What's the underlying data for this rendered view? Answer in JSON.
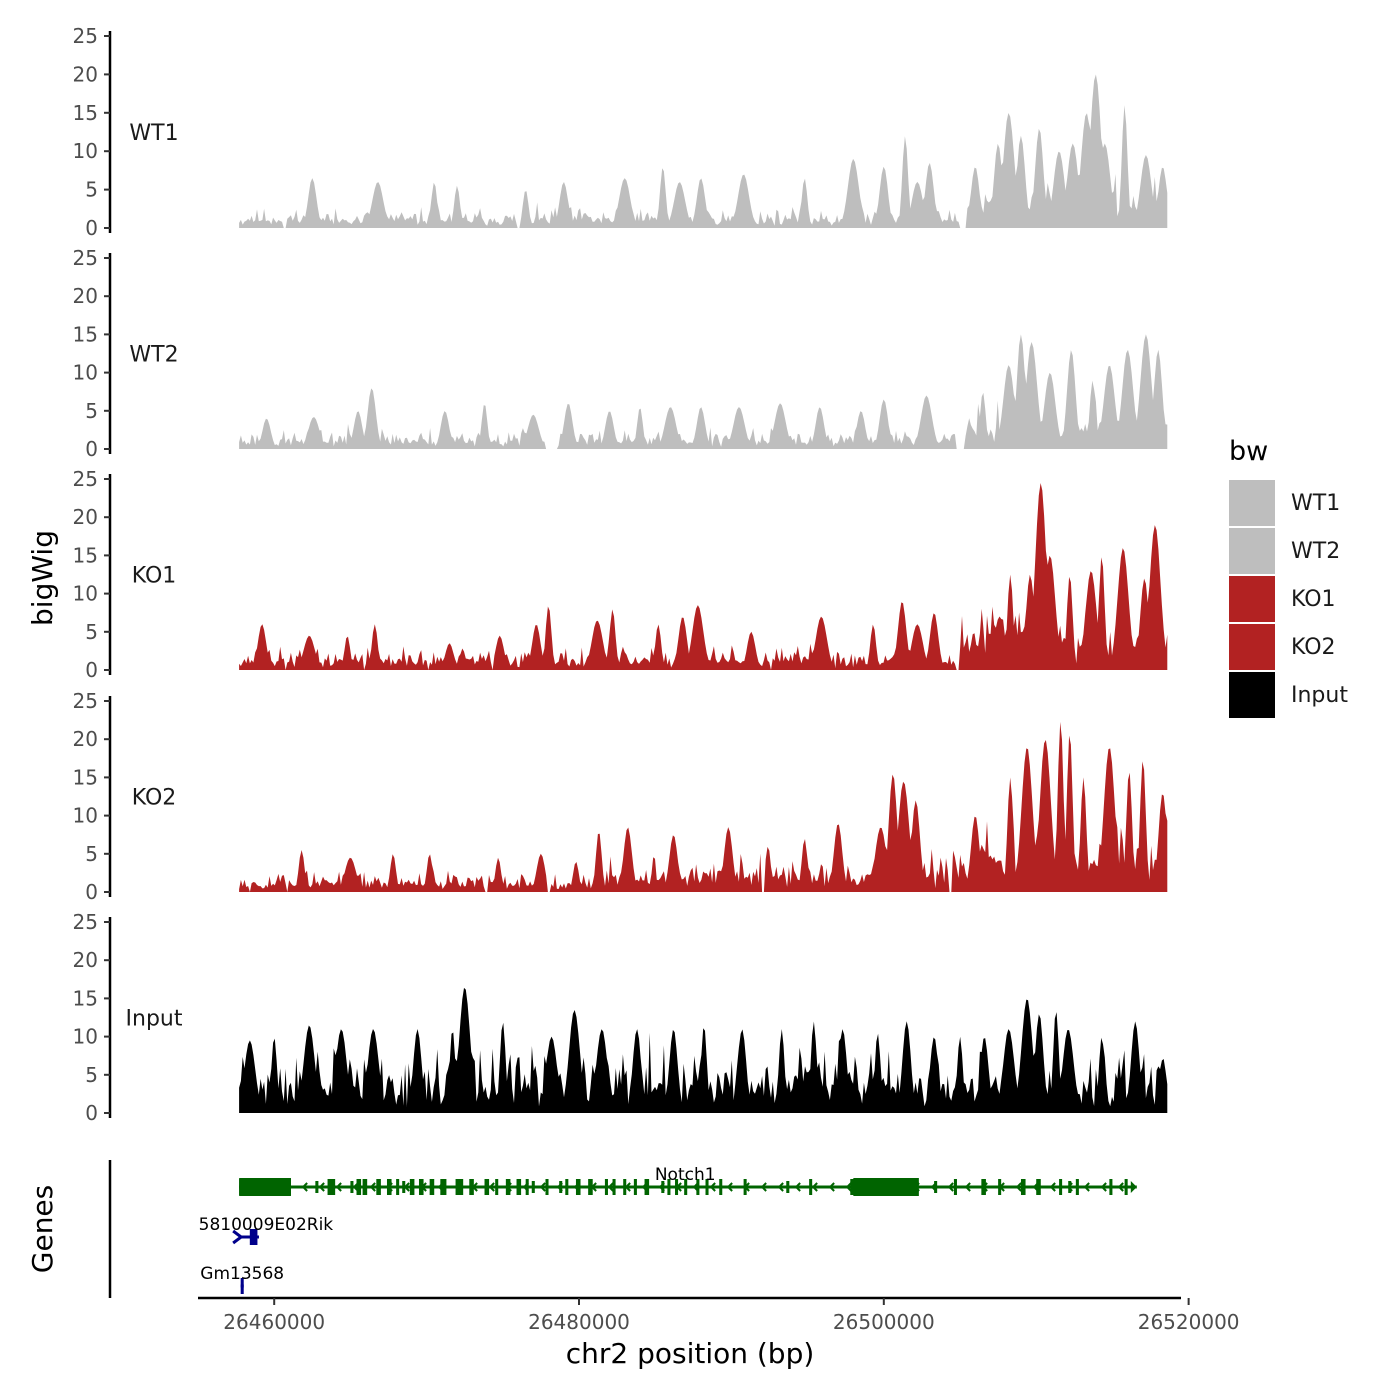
{
  "chart_data": {
    "type": "area",
    "title": "",
    "xlabel": "chr2 position (bp)",
    "ylabel": "bigWig",
    "genes_axis_label": "Genes",
    "xlim": [
      26455000,
      26519500
    ],
    "data_range": [
      26457700,
      26518600
    ],
    "x_ticks": [
      26460000,
      26480000,
      26500000,
      26520000
    ],
    "x_tick_labels": [
      "26460000",
      "26480000",
      "26500000",
      "26520000"
    ],
    "ylim": [
      0,
      25
    ],
    "y_ticks": [
      0,
      5,
      10,
      15,
      20,
      25
    ],
    "y_tick_labels": [
      "0",
      "5",
      "10",
      "15",
      "20",
      "25"
    ],
    "legend": {
      "title": "bw",
      "position": "right",
      "entries": [
        {
          "label": "WT1",
          "color": "#BEBEBE"
        },
        {
          "label": "WT2",
          "color": "#BEBEBE"
        },
        {
          "label": "KO1",
          "color": "#B22222"
        },
        {
          "label": "KO2",
          "color": "#B22222"
        },
        {
          "label": "Input",
          "color": "#000000"
        }
      ]
    },
    "series": [
      {
        "name": "WT1",
        "color": "#BEBEBE",
        "seed": 11,
        "peaks": [
          [
            26462500,
            6.5
          ],
          [
            26466800,
            6
          ],
          [
            26470500,
            6
          ],
          [
            26472000,
            5.5
          ],
          [
            26476500,
            5
          ],
          [
            26479000,
            6
          ],
          [
            26483000,
            6.5
          ],
          [
            26485500,
            8
          ],
          [
            26486600,
            6
          ],
          [
            26488000,
            6.5
          ],
          [
            26490800,
            7
          ],
          [
            26494800,
            6.5
          ],
          [
            26498000,
            9
          ],
          [
            26500000,
            8
          ],
          [
            26501400,
            12
          ],
          [
            26502200,
            6
          ],
          [
            26503000,
            8.5
          ],
          [
            26506000,
            8
          ],
          [
            26507500,
            11
          ],
          [
            26508200,
            15
          ],
          [
            26509000,
            12
          ],
          [
            26510200,
            13
          ],
          [
            26511500,
            10
          ],
          [
            26512400,
            11
          ],
          [
            26513300,
            15
          ],
          [
            26513900,
            20
          ],
          [
            26514500,
            11
          ],
          [
            26515800,
            16
          ],
          [
            26517200,
            9.5
          ],
          [
            26518300,
            8
          ]
        ],
        "base_segments": [
          [
            26457700,
            26505000,
            1.4
          ],
          [
            26505000,
            26518600,
            3.6
          ]
        ],
        "gaps": [
          [
            26460600,
            26460750
          ],
          [
            26475900,
            26476150
          ],
          [
            26504900,
            26505400
          ]
        ]
      },
      {
        "name": "WT2",
        "color": "#BEBEBE",
        "seed": 23,
        "peaks": [
          [
            26459500,
            4
          ],
          [
            26462600,
            4.2
          ],
          [
            26465500,
            5
          ],
          [
            26466400,
            8
          ],
          [
            26471200,
            5
          ],
          [
            26473800,
            6
          ],
          [
            26477000,
            4.5
          ],
          [
            26479300,
            6
          ],
          [
            26482000,
            5
          ],
          [
            26484000,
            5.5
          ],
          [
            26486000,
            5.5
          ],
          [
            26488000,
            5.5
          ],
          [
            26490500,
            5.5
          ],
          [
            26493200,
            6
          ],
          [
            26495800,
            5.5
          ],
          [
            26498500,
            5
          ],
          [
            26500000,
            6.5
          ],
          [
            26502800,
            7
          ],
          [
            26506500,
            7.5
          ],
          [
            26508200,
            11
          ],
          [
            26509000,
            15
          ],
          [
            26509700,
            14
          ],
          [
            26510900,
            10
          ],
          [
            26512300,
            13
          ],
          [
            26513700,
            9
          ],
          [
            26514800,
            11
          ],
          [
            26516000,
            13
          ],
          [
            26517200,
            15
          ],
          [
            26518000,
            13
          ]
        ],
        "base_segments": [
          [
            26457700,
            26505000,
            1.4
          ],
          [
            26505000,
            26518600,
            3.2
          ]
        ],
        "gaps": [
          [
            26477800,
            26478600
          ],
          [
            26504700,
            26505300
          ]
        ]
      },
      {
        "name": "KO1",
        "color": "#B22222",
        "seed": 37,
        "peaks": [
          [
            26459200,
            6
          ],
          [
            26462300,
            4.5
          ],
          [
            26464800,
            4.5
          ],
          [
            26466600,
            6
          ],
          [
            26471500,
            3.5
          ],
          [
            26474800,
            4.5
          ],
          [
            26477200,
            6
          ],
          [
            26478000,
            8.5
          ],
          [
            26481200,
            6.5
          ],
          [
            26482200,
            8
          ],
          [
            26485200,
            6
          ],
          [
            26486800,
            7
          ],
          [
            26487800,
            8.5
          ],
          [
            26491300,
            5
          ],
          [
            26495900,
            7
          ],
          [
            26499300,
            6
          ],
          [
            26501200,
            9
          ],
          [
            26502200,
            6
          ],
          [
            26503300,
            7.5
          ],
          [
            26505900,
            5
          ],
          [
            26507600,
            7
          ],
          [
            26508300,
            12.5
          ],
          [
            26509600,
            12.5
          ],
          [
            26510300,
            24.5
          ],
          [
            26510900,
            15
          ],
          [
            26512200,
            12.5
          ],
          [
            26513600,
            13
          ],
          [
            26514300,
            15
          ],
          [
            26515700,
            16
          ],
          [
            26517100,
            12
          ],
          [
            26517800,
            19
          ]
        ],
        "base_segments": [
          [
            26457700,
            26505000,
            1.6
          ],
          [
            26505000,
            26518600,
            5
          ]
        ],
        "gaps": [
          [
            26460650,
            26460800
          ],
          [
            26465800,
            26466000
          ],
          [
            26470100,
            26470200
          ],
          [
            26474250,
            26474400
          ],
          [
            26479500,
            26479600
          ],
          [
            26492500,
            26492650
          ],
          [
            26504700,
            26505000
          ]
        ]
      },
      {
        "name": "KO2",
        "color": "#B22222",
        "seed": 53,
        "peaks": [
          [
            26461800,
            5.5
          ],
          [
            26465000,
            4.5
          ],
          [
            26467800,
            5
          ],
          [
            26470200,
            5
          ],
          [
            26474700,
            4.5
          ],
          [
            26477500,
            5
          ],
          [
            26479800,
            4
          ],
          [
            26481300,
            8
          ],
          [
            26483200,
            8.5
          ],
          [
            26486200,
            7.5
          ],
          [
            26489800,
            8.5
          ],
          [
            26492400,
            6
          ],
          [
            26494800,
            7
          ],
          [
            26497000,
            9
          ],
          [
            26499800,
            8.5
          ],
          [
            26500600,
            15.5
          ],
          [
            26501300,
            14.5
          ],
          [
            26502100,
            12
          ],
          [
            26504500,
            5.5
          ],
          [
            26506000,
            10
          ],
          [
            26508300,
            15
          ],
          [
            26509400,
            19
          ],
          [
            26510600,
            20
          ],
          [
            26511600,
            22.5
          ],
          [
            26512200,
            21
          ],
          [
            26513100,
            15
          ],
          [
            26514800,
            19
          ],
          [
            26516100,
            16
          ],
          [
            26517000,
            17.5
          ],
          [
            26518300,
            13
          ]
        ],
        "base_segments": [
          [
            26457700,
            26481000,
            1.5
          ],
          [
            26481000,
            26505000,
            2.6
          ],
          [
            26505000,
            26518600,
            5
          ]
        ],
        "gaps": [
          [
            26458300,
            26458450
          ],
          [
            26460800,
            26460950
          ],
          [
            26473800,
            26474000
          ],
          [
            26477900,
            26478100
          ],
          [
            26492000,
            26492200
          ],
          [
            26504200,
            26504500
          ]
        ]
      },
      {
        "name": "Input",
        "color": "#000000",
        "seed": 71,
        "peaks": [
          [
            26458400,
            9.5
          ],
          [
            26460000,
            10
          ],
          [
            26462300,
            11.5
          ],
          [
            26464400,
            11
          ],
          [
            26466500,
            11
          ],
          [
            26469400,
            11
          ],
          [
            26471700,
            11
          ],
          [
            26472500,
            16.5
          ],
          [
            26475000,
            12
          ],
          [
            26478200,
            10
          ],
          [
            26479700,
            13.5
          ],
          [
            26481500,
            11
          ],
          [
            26483800,
            11
          ],
          [
            26486200,
            11
          ],
          [
            26488200,
            11.5
          ],
          [
            26490700,
            11
          ],
          [
            26493300,
            11
          ],
          [
            26495400,
            12
          ],
          [
            26497300,
            11
          ],
          [
            26499600,
            10.5
          ],
          [
            26501500,
            12
          ],
          [
            26503300,
            10
          ],
          [
            26505000,
            10
          ],
          [
            26506600,
            10
          ],
          [
            26508200,
            11
          ],
          [
            26509400,
            15
          ],
          [
            26510200,
            13
          ],
          [
            26511300,
            13.5
          ],
          [
            26512100,
            11
          ],
          [
            26514300,
            10
          ],
          [
            26516500,
            12
          ],
          [
            26518300,
            7
          ]
        ],
        "base_segments": [
          [
            26457700,
            26518600,
            4.5
          ]
        ],
        "gaps": []
      }
    ],
    "genes": [
      {
        "name": "Notch1",
        "label_display": "Notch1",
        "strand": "-",
        "color": "#006400",
        "start": 26457700,
        "end": 26516600,
        "lane": 0,
        "exons": [
          [
            26457700,
            26461100
          ],
          [
            26463500,
            26464000
          ],
          [
            26465400,
            26465700
          ],
          [
            26467400,
            26467700
          ],
          [
            26469500,
            26469800
          ],
          [
            26470900,
            26471300
          ],
          [
            26471900,
            26472400
          ],
          [
            26473800,
            26474100
          ],
          [
            26475200,
            26475500
          ],
          [
            26475900,
            26476200
          ],
          [
            26477800,
            26478000
          ],
          [
            26480600,
            26480900
          ],
          [
            26481700,
            26481900
          ],
          [
            26483600,
            26483800
          ],
          [
            26486900,
            26487100
          ],
          [
            26489200,
            26489400
          ],
          [
            26490800,
            26491000
          ],
          [
            26495100,
            26495300
          ],
          [
            26497800,
            26498100
          ],
          [
            26499000,
            26499200
          ],
          [
            26500800,
            26501100
          ],
          [
            26504600,
            26504800
          ],
          [
            26506400,
            26506700
          ],
          [
            26507500,
            26507700
          ],
          [
            26509000,
            26509300
          ],
          [
            26510000,
            26510300
          ],
          [
            26511500,
            26511700
          ],
          [
            26512600,
            26512800
          ],
          [
            26514800,
            26515000
          ],
          [
            26515800,
            26516000
          ]
        ],
        "thick_exons": [
          [
            26457700,
            26461100
          ],
          [
            26498000,
            26502300
          ]
        ],
        "small_exons": [
          [
            26462700,
            26462900
          ],
          [
            26465000,
            26465200
          ],
          [
            26468400,
            26468600
          ],
          [
            26476900,
            26477100
          ],
          [
            26478700,
            26478900
          ],
          [
            26485400,
            26485600
          ],
          [
            26493600,
            26493800
          ],
          [
            26503300,
            26503500
          ],
          [
            26512100,
            26512300
          ]
        ],
        "dense_exons": [
          [
            26465800,
            26466100
          ],
          [
            26466700,
            26467000
          ],
          [
            26468000,
            26468200
          ],
          [
            26468900,
            26469200
          ],
          [
            26470200,
            26470500
          ],
          [
            26472800,
            26473100
          ],
          [
            26474500,
            26474700
          ],
          [
            26476500,
            26476700
          ],
          [
            26479100,
            26479300
          ],
          [
            26479800,
            26480100
          ],
          [
            26482200,
            26482400
          ],
          [
            26482900,
            26483100
          ],
          [
            26484300,
            26484600
          ],
          [
            26485800,
            26486000
          ],
          [
            26486300,
            26486500
          ],
          [
            26487700,
            26487900
          ],
          [
            26488300,
            26488500
          ]
        ]
      },
      {
        "name": "5810009E02Rik",
        "label_display": "5810009E02Rik",
        "strand": "+",
        "color": "#00008B",
        "start": 26457700,
        "end": 26459000,
        "lane": 1,
        "exons": [
          [
            26458400,
            26458900
          ]
        ],
        "thick_exons": [],
        "small_exons": [],
        "dense_exons": []
      },
      {
        "name": "Gm13568",
        "label_display": "Gm13568",
        "strand": "+",
        "color": "#00008B",
        "start": 26457800,
        "end": 26458000,
        "lane": 2,
        "exons": [
          [
            26457800,
            26458000
          ]
        ],
        "thick_exons": [],
        "small_exons": [],
        "dense_exons": []
      }
    ]
  }
}
